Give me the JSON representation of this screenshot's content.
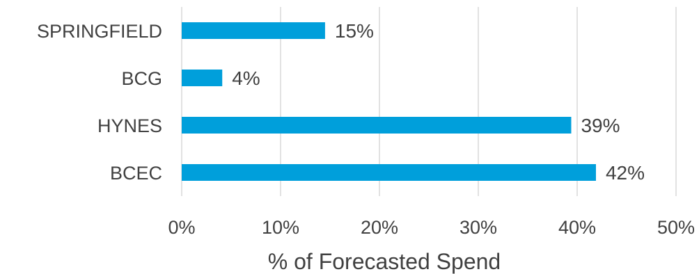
{
  "chart_data": {
    "type": "bar",
    "orientation": "horizontal",
    "categories": [
      "SPRINGFIELD",
      "BCG",
      "HYNES",
      "BCEC"
    ],
    "values": [
      14.5,
      4.1,
      39.4,
      41.9
    ],
    "data_labels": [
      "15%",
      "4%",
      "39%",
      "42%"
    ],
    "xlabel": "% of Forecasted Spend",
    "xlim": [
      0,
      50
    ],
    "xticks": [
      0,
      10,
      20,
      30,
      40,
      50
    ],
    "xtick_labels": [
      "0%",
      "10%",
      "20%",
      "30%",
      "40%",
      "50%"
    ],
    "grid": true,
    "legend": "none",
    "bar_color": "#009fdb"
  }
}
